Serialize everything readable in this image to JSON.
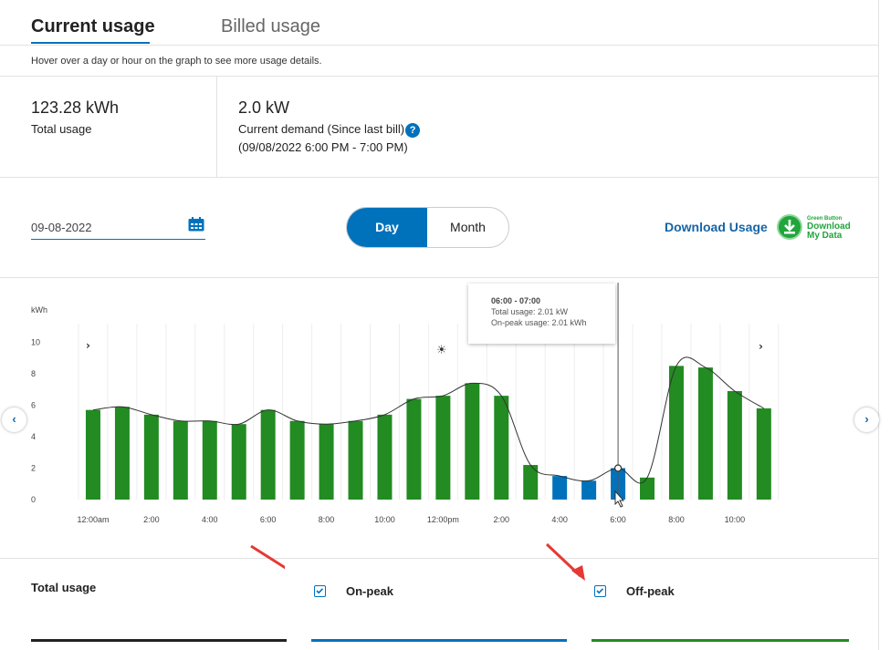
{
  "tabs": {
    "current": "Current usage",
    "billed": "Billed usage"
  },
  "hint": "Hover over a day or hour on the graph to see more usage details.",
  "summary": {
    "total_value": "123.28 kWh",
    "total_label": "Total usage",
    "demand_value": "2.0 kW",
    "demand_label": "Current demand (Since last bill)",
    "demand_period": "(09/08/2022 6:00 PM - 7:00 PM)",
    "help_icon": "?"
  },
  "controls": {
    "date": "09-08-2022",
    "day": "Day",
    "month": "Month",
    "download": "Download Usage",
    "green_button": {
      "small": "Green Button",
      "line1": "Download",
      "line2": "My Data"
    }
  },
  "tooltip": {
    "title": "06:00 - 07:00",
    "total": "Total usage: 2.01 kW",
    "onpeak": "On-peak usage: 2.01 kWh"
  },
  "legend": {
    "title": "Total usage",
    "on_peak": "On-peak",
    "off_peak": "Off-peak"
  },
  "icons": {
    "moon": "moon-icon",
    "sun": "sun-icon",
    "calendar": "calendar-icon",
    "prev": "chevron-left-icon",
    "next": "chevron-right-icon"
  },
  "colors": {
    "accent": "#0072bc",
    "off_peak": "#228b22",
    "on_peak": "#0072bc",
    "green_button": "#21a53c"
  },
  "chart_data": {
    "type": "bar",
    "ylabel": "kWh",
    "ylim": [
      0,
      10
    ],
    "yticks": [
      "10",
      "8",
      "6",
      "4",
      "2",
      "0"
    ],
    "categories": [
      "12:00am",
      "1:00",
      "2:00",
      "3:00",
      "4:00",
      "5:00",
      "6:00",
      "7:00",
      "8:00",
      "9:00",
      "10:00",
      "11:00",
      "12:00pm",
      "1:00",
      "2:00",
      "3:00",
      "4:00",
      "5:00",
      "6:00",
      "7:00",
      "8:00",
      "9:00",
      "10:00",
      "11:00"
    ],
    "xtick_labels": [
      "12:00am",
      "2:00",
      "4:00",
      "6:00",
      "8:00",
      "10:00",
      "12:00pm",
      "2:00",
      "4:00",
      "6:00",
      "8:00",
      "10:00"
    ],
    "values": [
      5.7,
      5.9,
      5.4,
      5.0,
      5.0,
      4.8,
      5.7,
      5.0,
      4.8,
      5.0,
      5.4,
      6.4,
      6.6,
      7.4,
      6.6,
      2.2,
      1.5,
      1.2,
      2.0,
      1.4,
      8.5,
      8.4,
      6.9,
      5.8
    ],
    "peak": [
      "off",
      "off",
      "off",
      "off",
      "off",
      "off",
      "off",
      "off",
      "off",
      "off",
      "off",
      "off",
      "off",
      "off",
      "off",
      "off",
      "on",
      "on",
      "on",
      "off",
      "off",
      "off",
      "off",
      "off"
    ],
    "series_colors": {
      "off": "#228b22",
      "on": "#0072bc"
    },
    "highlighted": 18,
    "grid": true
  }
}
